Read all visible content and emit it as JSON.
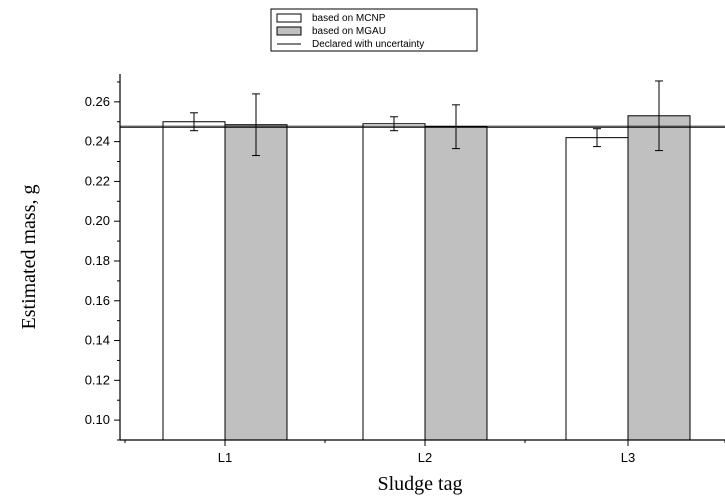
{
  "chart_data": {
    "type": "bar",
    "xlabel": "Sludge tag",
    "ylabel": "Estimated mass, g",
    "categories": [
      "L1",
      "L2",
      "L3"
    ],
    "ylim": [
      0.09,
      0.274
    ],
    "yticks": [
      0.1,
      0.12,
      0.14,
      0.16,
      0.18,
      0.2,
      0.22,
      0.24,
      0.26
    ],
    "ytick_labels": [
      "0.10",
      "0.12",
      "0.14",
      "0.16",
      "0.18",
      "0.20",
      "0.22",
      "0.24",
      "0.26"
    ],
    "series": [
      {
        "name": "based on MCNP",
        "color": "#ffffff",
        "values": [
          0.25,
          0.249,
          0.242
        ],
        "errors": [
          0.0045,
          0.0035,
          0.0045
        ]
      },
      {
        "name": "based on MGAU",
        "color": "#c0c0c0",
        "values": [
          0.2485,
          0.2475,
          0.253
        ],
        "errors": [
          0.0155,
          0.011,
          0.0175
        ]
      }
    ],
    "reference_line": {
      "name": "Declared with uncertainty",
      "value": 0.2475,
      "band": 0.0003
    },
    "grid": false,
    "legend_position": "top-center"
  }
}
